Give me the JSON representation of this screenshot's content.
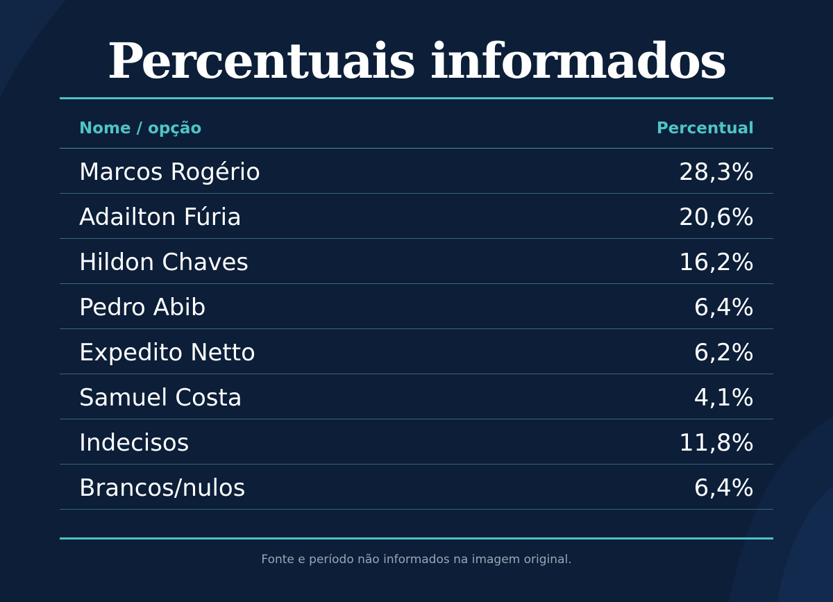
{
  "title": "Percentuais informados",
  "table": {
    "header": {
      "name": "Nome / opção",
      "value": "Percentual"
    },
    "rows": [
      {
        "name": "Marcos Rogério",
        "value": "28,3%"
      },
      {
        "name": "Adailton Fúria",
        "value": "20,6%"
      },
      {
        "name": "Hildon Chaves",
        "value": "16,2%"
      },
      {
        "name": "Pedro Abib",
        "value": "6,4%"
      },
      {
        "name": "Expedito Netto",
        "value": "6,2%"
      },
      {
        "name": "Samuel Costa",
        "value": "4,1%"
      },
      {
        "name": "Indecisos",
        "value": "11,8%"
      },
      {
        "name": "Brancos/nulos",
        "value": "6,4%"
      }
    ]
  },
  "footnote": "Fonte e período não informados na imagem original.",
  "colors": {
    "background": "#0c1e38",
    "accent": "#4fc3c6",
    "text": "#ffffff",
    "footnote": "#9aa6b6"
  },
  "chart_data": {
    "type": "table",
    "title": "Percentuais informados",
    "columns": [
      "Nome / opção",
      "Percentual"
    ],
    "categories": [
      "Marcos Rogério",
      "Adailton Fúria",
      "Hildon Chaves",
      "Pedro Abib",
      "Expedito Netto",
      "Samuel Costa",
      "Indecisos",
      "Brancos/nulos"
    ],
    "values": [
      28.3,
      20.6,
      16.2,
      6.4,
      6.2,
      4.1,
      11.8,
      6.4
    ]
  }
}
